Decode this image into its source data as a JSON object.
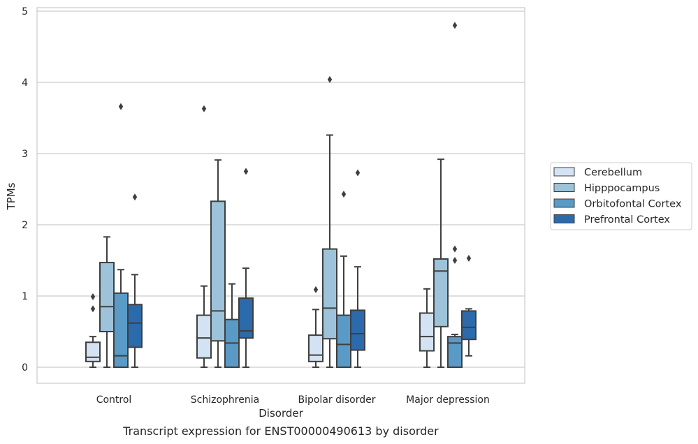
{
  "chart_data": {
    "type": "box",
    "xlabel": "Disorder",
    "ylabel": "TPMs",
    "caption": "Transcript expression for ENST00000490613 by disorder",
    "categories": [
      "Control",
      "Schizophrenia",
      "Bipolar disorder",
      "Major depression"
    ],
    "ylim": [
      -0.22,
      5.05
    ],
    "yticks": [
      0,
      1,
      2,
      3,
      4,
      5
    ],
    "grid": "horizontal",
    "legend_position": "right",
    "series": [
      {
        "name": "Cerebellum",
        "color": "#d4e3f3",
        "boxes": [
          {
            "whislo": 0.0,
            "q1": 0.08,
            "med": 0.14,
            "q3": 0.35,
            "whishi": 0.43,
            "fliers": [
              0.82,
              0.99
            ]
          },
          {
            "whislo": 0.0,
            "q1": 0.13,
            "med": 0.41,
            "q3": 0.73,
            "whishi": 1.14,
            "fliers": [
              3.63
            ]
          },
          {
            "whislo": 0.0,
            "q1": 0.08,
            "med": 0.17,
            "q3": 0.45,
            "whishi": 0.81,
            "fliers": [
              1.09
            ]
          },
          {
            "whislo": 0.0,
            "q1": 0.23,
            "med": 0.43,
            "q3": 0.76,
            "whishi": 1.1,
            "fliers": []
          }
        ]
      },
      {
        "name": "Hipppocampus",
        "color": "#9cc3da",
        "boxes": [
          {
            "whislo": 0.0,
            "q1": 0.5,
            "med": 0.85,
            "q3": 1.47,
            "whishi": 1.83,
            "fliers": []
          },
          {
            "whislo": 0.0,
            "q1": 0.37,
            "med": 0.79,
            "q3": 2.33,
            "whishi": 2.91,
            "fliers": []
          },
          {
            "whislo": 0.0,
            "q1": 0.4,
            "med": 0.83,
            "q3": 1.66,
            "whishi": 3.26,
            "fliers": [
              4.04
            ]
          },
          {
            "whislo": 0.0,
            "q1": 0.57,
            "med": 1.35,
            "q3": 1.52,
            "whishi": 2.92,
            "fliers": []
          }
        ]
      },
      {
        "name": "Orbitofontal Cortex",
        "color": "#5a9ac6",
        "boxes": [
          {
            "whislo": 0.0,
            "q1": 0.0,
            "med": 0.16,
            "q3": 1.04,
            "whishi": 1.37,
            "fliers": [
              3.66
            ]
          },
          {
            "whislo": 0.0,
            "q1": 0.0,
            "med": 0.34,
            "q3": 0.67,
            "whishi": 1.17,
            "fliers": []
          },
          {
            "whislo": 0.0,
            "q1": 0.0,
            "med": 0.32,
            "q3": 0.73,
            "whishi": 1.56,
            "fliers": [
              2.43
            ]
          },
          {
            "whislo": 0.0,
            "q1": 0.0,
            "med": 0.34,
            "q3": 0.43,
            "whishi": 0.46,
            "fliers": [
              1.5,
              1.66,
              4.8
            ]
          }
        ]
      },
      {
        "name": "Prefrontal Cortex",
        "color": "#2b6aab",
        "boxes": [
          {
            "whislo": 0.0,
            "q1": 0.28,
            "med": 0.62,
            "q3": 0.88,
            "whishi": 1.3,
            "fliers": [
              2.39
            ]
          },
          {
            "whislo": 0.0,
            "q1": 0.41,
            "med": 0.51,
            "q3": 0.97,
            "whishi": 1.39,
            "fliers": [
              2.75
            ]
          },
          {
            "whislo": 0.0,
            "q1": 0.24,
            "med": 0.47,
            "q3": 0.8,
            "whishi": 1.41,
            "fliers": [
              2.73
            ]
          },
          {
            "whislo": 0.16,
            "q1": 0.39,
            "med": 0.56,
            "q3": 0.79,
            "whishi": 0.82,
            "fliers": [
              1.53
            ]
          }
        ]
      }
    ]
  }
}
